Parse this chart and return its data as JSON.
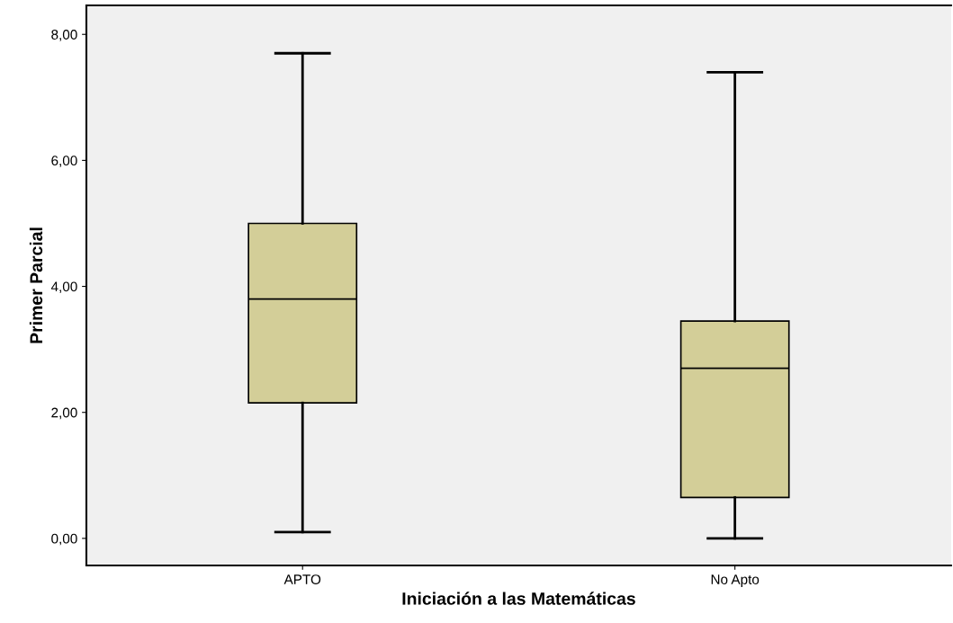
{
  "chart_data": {
    "type": "box",
    "xlabel": "Iniciación a las Matemáticas",
    "ylabel": "Primer Parcial",
    "categories": [
      "APTO",
      "No Apto"
    ],
    "color": "#d3ce98",
    "boxes": [
      {
        "low": 0.1,
        "q1": 2.15,
        "median": 3.8,
        "q3": 5.0,
        "high": 7.7
      },
      {
        "low": 0.0,
        "q1": 0.65,
        "median": 2.7,
        "q3": 3.45,
        "high": 7.4
      }
    ],
    "ylim": [
      -0.43,
      8.46
    ],
    "yticks": [
      {
        "value": 0,
        "label": "0,00"
      },
      {
        "value": 2,
        "label": "2,00"
      },
      {
        "value": 4,
        "label": "4,00"
      },
      {
        "value": 6,
        "label": "6,00"
      },
      {
        "value": 8,
        "label": "8,00"
      }
    ],
    "grid": false
  }
}
